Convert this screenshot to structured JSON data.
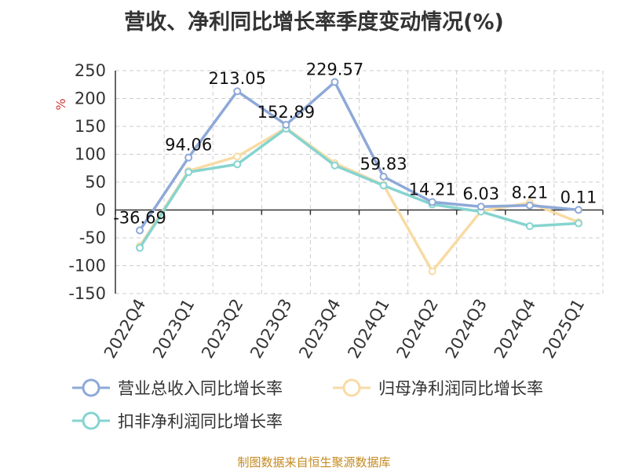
{
  "title": "营收、净利同比增长率季度变动情况(%)",
  "source": "制图数据来自恒生聚源数据库",
  "chart_data": {
    "type": "line",
    "ylabel": "%",
    "ylim": [
      -150,
      250
    ],
    "yticks": [
      250,
      200,
      150,
      100,
      50,
      0,
      -50,
      -100,
      -150
    ],
    "categories": [
      "2022Q4",
      "2023Q1",
      "2023Q2",
      "2023Q3",
      "2023Q4",
      "2024Q1",
      "2024Q2",
      "2024Q3",
      "2024Q4",
      "2025Q1"
    ],
    "grid": true,
    "legend_position": "bottom",
    "series": [
      {
        "name": "营业总收入同比增长率",
        "color": "#8ea9d8",
        "values": [
          -36.69,
          94.06,
          213.05,
          152.89,
          229.57,
          59.83,
          14.21,
          6.03,
          8.21,
          0.11
        ],
        "labels": [
          "-36.69",
          "94.06",
          "213.05",
          "152.89",
          "229.57",
          "59.83",
          "14.21",
          "6.03",
          "8.21",
          "0.11"
        ]
      },
      {
        "name": "归母净利润同比增长率",
        "color": "#f8dba4",
        "values": [
          -65,
          70,
          96,
          147,
          84,
          45,
          -110,
          -2,
          13,
          -22
        ]
      },
      {
        "name": "扣非净利润同比增长率",
        "color": "#86d4d0",
        "values": [
          -68,
          68,
          82,
          146,
          80,
          44,
          10,
          -3,
          -29,
          -24
        ]
      }
    ]
  }
}
